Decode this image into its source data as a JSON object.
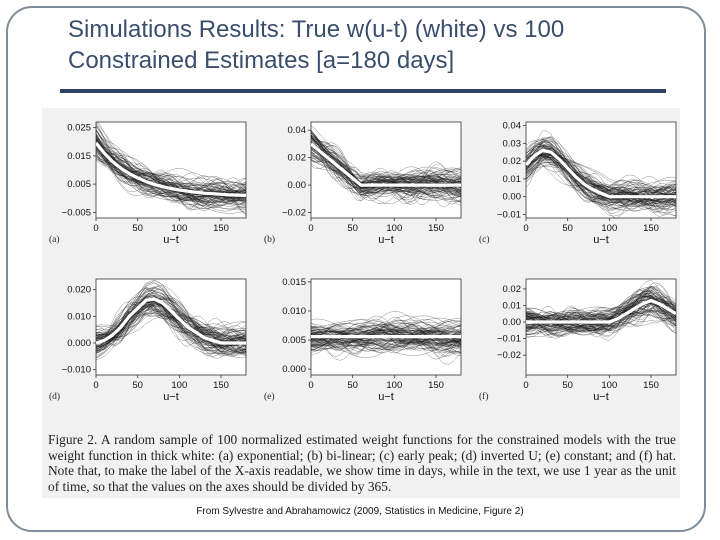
{
  "slide": {
    "title": "Simulations Results: True w(u-t) (white) vs 100 Constrained Estimates [a=180 days]",
    "source": "From Sylvestre and Abrahamowicz (2009, Statistics in Medicine, Figure 2)"
  },
  "figure": {
    "caption": "Figure 2. A random sample of 100 normalized estimated weight functions for the constrained models with the true weight function in thick white: (a) exponential; (b) bi-linear; (c) early peak; (d) inverted U; (e) constant; and (f) hat. Note that, to make the label of the X-axis readable, we show time in days, while in the text, we use 1 year as the unit of time, so that the values on the axes should be divided by 365."
  },
  "chart_data": [
    {
      "type": "line",
      "panel_label": "(a)",
      "xlabel": "u−t",
      "ylabel": "",
      "xlim": [
        0,
        180
      ],
      "ylim": [
        -0.007,
        0.027
      ],
      "x_ticks": [
        0,
        50,
        100,
        150
      ],
      "x_tick_labels": [
        "0",
        "50",
        "100",
        "150"
      ],
      "y_ticks": [
        0.025,
        0.015,
        0.005,
        -0.005
      ],
      "y_tick_labels": [
        "0.025",
        "0.015",
        "0.005",
        "−0.005"
      ],
      "x": [
        0,
        10,
        20,
        30,
        40,
        50,
        60,
        70,
        80,
        90,
        100,
        110,
        120,
        130,
        140,
        150,
        160,
        170,
        180
      ],
      "series": [
        {
          "values": [
            0.0196,
            0.0159,
            0.0129,
            0.0106,
            0.0087,
            0.0072,
            0.0059,
            0.0049,
            0.0041,
            0.0035,
            0.0029,
            0.0025,
            0.0021,
            0.0018,
            0.0016,
            0.0014,
            0.0012,
            0.0011,
            0.001
          ]
        }
      ],
      "estimates_shown": 100
    },
    {
      "type": "line",
      "panel_label": "(b)",
      "xlabel": "u−t",
      "ylabel": "",
      "xlim": [
        0,
        180
      ],
      "ylim": [
        -0.024,
        0.046
      ],
      "x_ticks": [
        0,
        50,
        100,
        150
      ],
      "x_tick_labels": [
        "0",
        "50",
        "100",
        "150"
      ],
      "y_ticks": [
        0.04,
        0.02,
        0.0,
        -0.02
      ],
      "y_tick_labels": [
        "0.04",
        "0.02",
        "0.00",
        "−0.02"
      ],
      "x": [
        0,
        10,
        20,
        30,
        40,
        50,
        60,
        70,
        80,
        90,
        100,
        110,
        120,
        130,
        140,
        150,
        160,
        170,
        180
      ],
      "series": [
        {
          "values": [
            0.03,
            0.025,
            0.02,
            0.015,
            0.01,
            0.005,
            0.0,
            0.0,
            0.0,
            0.0,
            0.0,
            0.0,
            0.0,
            0.0,
            0.0,
            0.0,
            0.0,
            0.0,
            0.0
          ]
        }
      ],
      "estimates_shown": 100
    },
    {
      "type": "line",
      "panel_label": "(c)",
      "xlabel": "u−t",
      "ylabel": "",
      "xlim": [
        0,
        180
      ],
      "ylim": [
        -0.012,
        0.042
      ],
      "x_ticks": [
        0,
        50,
        100,
        150
      ],
      "x_tick_labels": [
        "0",
        "50",
        "100",
        "150"
      ],
      "y_ticks": [
        0.04,
        0.03,
        0.02,
        0.01,
        0.0,
        -0.01
      ],
      "y_tick_labels": [
        "0.04",
        "0.03",
        "0.02",
        "0.01",
        "0.00",
        "−0.01"
      ],
      "x": [
        0,
        10,
        20,
        30,
        40,
        50,
        60,
        70,
        80,
        90,
        100,
        110,
        120,
        130,
        140,
        150,
        160,
        170,
        180
      ],
      "series": [
        {
          "values": [
            0.018,
            0.023,
            0.026,
            0.025,
            0.021,
            0.016,
            0.011,
            0.007,
            0.004,
            0.002,
            0.0,
            0.0,
            0.0,
            0.0,
            0.0,
            0.0,
            0.0,
            0.0,
            0.0
          ]
        }
      ],
      "estimates_shown": 100
    },
    {
      "type": "line",
      "panel_label": "(d)",
      "xlabel": "u−t",
      "ylabel": "",
      "xlim": [
        0,
        180
      ],
      "ylim": [
        -0.012,
        0.024
      ],
      "x_ticks": [
        0,
        50,
        100,
        150
      ],
      "x_tick_labels": [
        "0",
        "50",
        "100",
        "150"
      ],
      "y_ticks": [
        0.02,
        0.01,
        0.0,
        -0.01
      ],
      "y_tick_labels": [
        "0.020",
        "0.010",
        "0.000",
        "−0.010"
      ],
      "x": [
        0,
        10,
        20,
        30,
        40,
        50,
        60,
        70,
        80,
        90,
        100,
        110,
        120,
        130,
        140,
        150,
        160,
        170,
        180
      ],
      "series": [
        {
          "values": [
            0.0,
            0.001,
            0.003,
            0.006,
            0.01,
            0.013,
            0.016,
            0.0165,
            0.015,
            0.012,
            0.009,
            0.006,
            0.004,
            0.002,
            0.001,
            0.0,
            0.0,
            0.0,
            0.0
          ]
        }
      ],
      "estimates_shown": 100
    },
    {
      "type": "line",
      "panel_label": "(e)",
      "xlabel": "u−t",
      "ylabel": "",
      "xlim": [
        0,
        180
      ],
      "ylim": [
        -0.001,
        0.0155
      ],
      "x_ticks": [
        0,
        50,
        100,
        150
      ],
      "x_tick_labels": [
        "0",
        "50",
        "100",
        "150"
      ],
      "y_ticks": [
        0.015,
        0.01,
        0.005,
        0.0
      ],
      "y_tick_labels": [
        "0.015",
        "0.010",
        "0.005",
        "0.000"
      ],
      "x": [
        0,
        10,
        20,
        30,
        40,
        50,
        60,
        70,
        80,
        90,
        100,
        110,
        120,
        130,
        140,
        150,
        160,
        170,
        180
      ],
      "series": [
        {
          "values": [
            0.0056,
            0.0056,
            0.0056,
            0.0056,
            0.0056,
            0.0056,
            0.0056,
            0.0056,
            0.0056,
            0.0056,
            0.0056,
            0.0056,
            0.0056,
            0.0056,
            0.0056,
            0.0056,
            0.0056,
            0.0056,
            0.0056
          ]
        }
      ],
      "estimates_shown": 100
    },
    {
      "type": "line",
      "panel_label": "(f)",
      "xlabel": "u−t",
      "ylabel": "",
      "xlim": [
        0,
        180
      ],
      "ylim": [
        -0.032,
        0.026
      ],
      "x_ticks": [
        0,
        50,
        100,
        150
      ],
      "x_tick_labels": [
        "0",
        "50",
        "100",
        "150"
      ],
      "y_ticks": [
        0.02,
        0.01,
        0.0,
        -0.01,
        -0.02
      ],
      "y_tick_labels": [
        "0.02",
        "0.01",
        "0.00",
        "−0.01",
        "−0.02"
      ],
      "x": [
        0,
        10,
        20,
        30,
        40,
        50,
        60,
        70,
        80,
        90,
        100,
        110,
        120,
        130,
        140,
        150,
        160,
        170,
        180
      ],
      "series": [
        {
          "values": [
            0.0,
            0.0,
            0.0,
            0.0,
            0.0,
            0.0,
            0.0,
            0.0,
            0.0,
            0.0,
            0.0,
            0.002,
            0.005,
            0.008,
            0.011,
            0.013,
            0.011,
            0.008,
            0.005
          ]
        }
      ],
      "estimates_shown": 100
    }
  ]
}
